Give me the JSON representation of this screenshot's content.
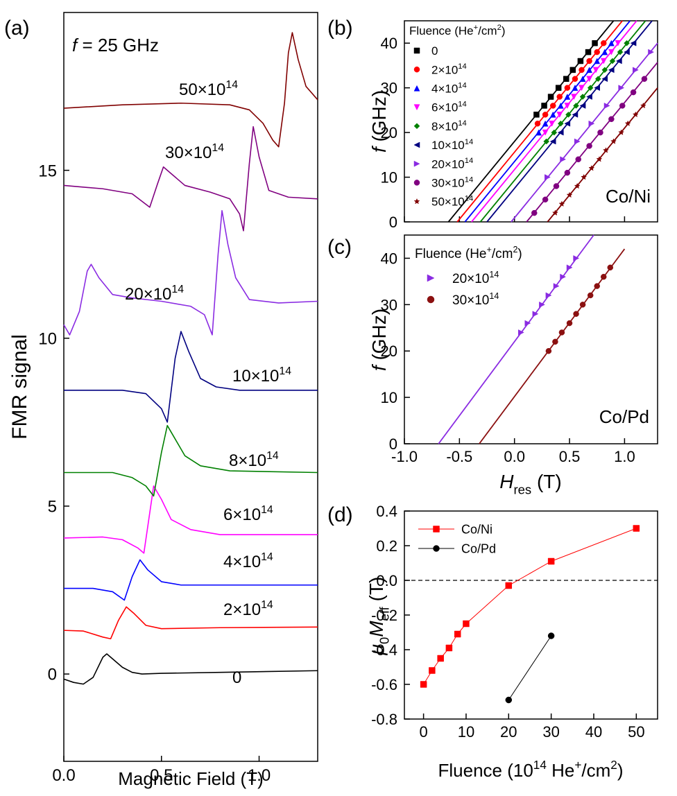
{
  "chart_data": [
    {
      "type": "line",
      "panel": "(a)",
      "ylabel": "FMR signal",
      "xlabel": "Magnetic Field (T)",
      "annotation": [
        "f",
        " = 25 GHz"
      ],
      "xlim": [
        0,
        1.3
      ],
      "ylim": [
        -2.6,
        19.7
      ],
      "xticks": [
        {
          "value": 0,
          "label": "0.0"
        },
        0.5,
        {
          "value": 1,
          "label": "1.0"
        }
      ],
      "yticks": [
        0,
        5,
        10,
        15
      ],
      "series": [
        {
          "name": [
            "0"
          ],
          "color": "#000000",
          "x": [
            0,
            0.05,
            0.1,
            0.15,
            0.2,
            0.22,
            0.25,
            0.3,
            0.35,
            0.4,
            0.5,
            0.8,
            1.3
          ],
          "values": [
            -0.15,
            -0.25,
            -0.3,
            -0.1,
            0.5,
            0.6,
            0.45,
            0.2,
            0.05,
            0.0,
            0.02,
            0.05,
            0.1
          ]
        },
        {
          "name": [
            "2×10",
            "14"
          ],
          "color": "#ff0000",
          "x": [
            0,
            0.1,
            0.2,
            0.24,
            0.28,
            0.32,
            0.36,
            0.42,
            0.5,
            0.8,
            1.3
          ],
          "values": [
            1.3,
            1.28,
            1.1,
            1.05,
            1.6,
            2.0,
            1.8,
            1.45,
            1.35,
            1.38,
            1.4
          ]
        },
        {
          "name": [
            "4×10",
            "14"
          ],
          "color": "#0000ff",
          "x": [
            0,
            0.15,
            0.25,
            0.31,
            0.35,
            0.39,
            0.43,
            0.5,
            0.6,
            0.9,
            1.3
          ],
          "values": [
            2.55,
            2.55,
            2.45,
            2.2,
            2.9,
            3.4,
            3.1,
            2.75,
            2.65,
            2.65,
            2.65
          ]
        },
        {
          "name": [
            "6×10",
            "14"
          ],
          "color": "#ff00ff",
          "x": [
            0,
            0.2,
            0.3,
            0.38,
            0.41,
            0.44,
            0.46,
            0.5,
            0.55,
            0.65,
            0.8,
            1.3
          ],
          "values": [
            4.05,
            4.08,
            4.0,
            3.75,
            3.6,
            4.8,
            5.6,
            5.2,
            4.6,
            4.3,
            4.15,
            4.15
          ]
        },
        {
          "name": [
            "8×10",
            "14"
          ],
          "color": "#008000",
          "x": [
            0,
            0.25,
            0.35,
            0.42,
            0.46,
            0.5,
            0.53,
            0.57,
            0.62,
            0.7,
            0.85,
            1.3
          ],
          "values": [
            6.0,
            6.0,
            5.85,
            5.6,
            5.3,
            6.6,
            7.4,
            7.0,
            6.5,
            6.2,
            6.05,
            6.0
          ]
        },
        {
          "name": [
            "10×10",
            "14"
          ],
          "color": "#000080",
          "x": [
            0,
            0.3,
            0.42,
            0.5,
            0.53,
            0.57,
            0.6,
            0.64,
            0.7,
            0.78,
            0.9,
            1.3
          ],
          "values": [
            8.45,
            8.45,
            8.35,
            7.9,
            7.5,
            9.4,
            10.2,
            9.6,
            8.8,
            8.55,
            8.45,
            8.45
          ]
        },
        {
          "name": [
            "20×10",
            "14"
          ],
          "color": "#8a2be2",
          "x": [
            0,
            0.03,
            0.08,
            0.12,
            0.14,
            0.18,
            0.25,
            0.35,
            0.5,
            0.65,
            0.72,
            0.76,
            0.79,
            0.81,
            0.84,
            0.88,
            0.95,
            1.1,
            1.3
          ],
          "values": [
            10.4,
            10.1,
            10.8,
            12.0,
            12.2,
            11.8,
            11.3,
            11.2,
            11.1,
            10.95,
            10.7,
            10.1,
            12.5,
            13.8,
            12.8,
            11.8,
            11.15,
            11.05,
            11.1
          ]
        },
        {
          "name": [
            "30×10",
            "14"
          ],
          "color": "#800080",
          "x": [
            0,
            0.2,
            0.35,
            0.44,
            0.48,
            0.51,
            0.55,
            0.62,
            0.75,
            0.85,
            0.9,
            0.92,
            0.95,
            0.97,
            1.0,
            1.05,
            1.15,
            1.3
          ],
          "values": [
            14.55,
            14.45,
            14.3,
            13.9,
            14.6,
            15.1,
            14.9,
            14.55,
            14.35,
            14.15,
            13.7,
            13.2,
            15.2,
            16.3,
            15.4,
            14.4,
            14.2,
            14.15
          ]
        },
        {
          "name": [
            "50×10",
            "14"
          ],
          "color": "#800000",
          "x": [
            0,
            0.3,
            0.6,
            0.85,
            0.95,
            1.02,
            1.07,
            1.1,
            1.13,
            1.15,
            1.17,
            1.2,
            1.24,
            1.3
          ],
          "values": [
            16.85,
            16.95,
            17.0,
            16.95,
            16.8,
            16.4,
            15.9,
            15.7,
            17.0,
            18.5,
            19.1,
            18.3,
            17.5,
            17.1
          ]
        }
      ]
    },
    {
      "type": "scatter",
      "panel": "(b)",
      "ylabel": [
        "f",
        " (GHz)"
      ],
      "annotation": "Co/Ni",
      "annotation_color": "#ff0000",
      "legend": "upper left",
      "legend_title": [
        "Fluence (He",
        "+",
        "/cm",
        "2",
        ")"
      ],
      "xlim": [
        -1,
        1.3
      ],
      "ylim": [
        0,
        45
      ],
      "xticks": [
        -1,
        -0.5,
        0,
        0.5,
        1
      ],
      "xtick_labels": false,
      "yticks": [
        0,
        10,
        20,
        30,
        40
      ],
      "series": [
        {
          "name": [
            "0"
          ],
          "color": "#000000",
          "marker": "square",
          "x": [
            0.2,
            0.27,
            0.33,
            0.4,
            0.47,
            0.53,
            0.6,
            0.67,
            0.73
          ],
          "values": [
            24,
            26,
            28,
            30,
            32,
            34,
            36,
            38,
            40
          ],
          "fit": {
            "x": [
              -0.6,
              0.9
            ],
            "values": [
              0,
              45
            ]
          }
        },
        {
          "name": [
            "2×10",
            "14"
          ],
          "color": "#ff0000",
          "marker": "circle",
          "x": [
            0.21,
            0.28,
            0.35,
            0.41,
            0.48,
            0.55,
            0.61,
            0.68,
            0.75,
            0.81
          ],
          "values": [
            22,
            24,
            26,
            28,
            30,
            32,
            34,
            36,
            38,
            40
          ],
          "fit": {
            "x": [
              -0.52,
              0.98
            ],
            "values": [
              0,
              45
            ]
          }
        },
        {
          "name": [
            "4×10",
            "14"
          ],
          "color": "#0000ff",
          "marker": "triangle-up",
          "x": [
            0.22,
            0.28,
            0.35,
            0.42,
            0.48,
            0.55,
            0.62,
            0.68,
            0.75,
            0.82,
            0.88
          ],
          "values": [
            20,
            22,
            24,
            26,
            28,
            30,
            32,
            34,
            36,
            38,
            40
          ],
          "fit": {
            "x": [
              -0.45,
              1.05
            ],
            "values": [
              0,
              45
            ]
          }
        },
        {
          "name": [
            "6×10",
            "14"
          ],
          "color": "#ff00ff",
          "marker": "triangle-down",
          "x": [
            0.28,
            0.34,
            0.41,
            0.48,
            0.54,
            0.61,
            0.68,
            0.74,
            0.81,
            0.88,
            0.94
          ],
          "values": [
            20,
            22,
            24,
            26,
            28,
            30,
            32,
            34,
            36,
            38,
            40
          ],
          "fit": {
            "x": [
              -0.39,
              1.11
            ],
            "values": [
              0,
              45
            ]
          }
        },
        {
          "name": [
            "8×10",
            "14"
          ],
          "color": "#008000",
          "marker": "diamond",
          "x": [
            0.29,
            0.36,
            0.42,
            0.49,
            0.56,
            0.62,
            0.69,
            0.76,
            0.82,
            0.89,
            0.96,
            1.02
          ],
          "values": [
            18,
            20,
            22,
            24,
            26,
            28,
            30,
            32,
            34,
            36,
            38,
            40
          ],
          "fit": {
            "x": [
              -0.31,
              1.19
            ],
            "values": [
              0,
              45
            ]
          }
        },
        {
          "name": [
            "10×10",
            "14"
          ],
          "color": "#000080",
          "marker": "triangle-left",
          "x": [
            0.35,
            0.42,
            0.48,
            0.55,
            0.62,
            0.68,
            0.75,
            0.82,
            0.88,
            0.95,
            1.02,
            1.08
          ],
          "values": [
            18,
            20,
            22,
            24,
            26,
            28,
            30,
            32,
            34,
            36,
            38,
            40
          ],
          "fit": {
            "x": [
              -0.25,
              1.25
            ],
            "values": [
              0,
              45
            ]
          }
        },
        {
          "name": [
            "20×10",
            "14"
          ],
          "color": "#8a2be2",
          "marker": "triangle-right",
          "x": [
            0.3,
            0.44,
            0.57,
            0.7,
            0.84,
            0.97,
            1.1,
            1.24
          ],
          "values": [
            10,
            14,
            18,
            22,
            26,
            30,
            34,
            38
          ],
          "fit": {
            "x": [
              -0.03,
              1.3
            ],
            "values": [
              0,
              40
            ]
          }
        },
        {
          "name": [
            "30×10",
            "14"
          ],
          "color": "#800080",
          "marker": "circle",
          "x": [
            0.18,
            0.28,
            0.38,
            0.48,
            0.58,
            0.68,
            0.78,
            0.88,
            0.98,
            1.08,
            1.18
          ],
          "values": [
            2,
            5,
            8,
            11,
            14,
            17,
            20,
            23,
            26,
            29,
            32
          ],
          "fit": {
            "x": [
              0.11,
              1.3
            ],
            "values": [
              0,
              35.7
            ]
          }
        },
        {
          "name": [
            "50×10",
            "14"
          ],
          "color": "#800000",
          "marker": "star",
          "x": [
            0.37,
            0.43,
            0.5,
            0.57,
            0.63,
            0.7,
            0.77,
            0.83,
            0.9,
            0.97,
            1.03,
            1.1,
            1.17
          ],
          "values": [
            2,
            4,
            6,
            8,
            10,
            12,
            14,
            16,
            18,
            20,
            22,
            24,
            26
          ],
          "fit": {
            "x": [
              0.3,
              1.3
            ],
            "values": [
              0,
              30
            ]
          }
        }
      ]
    },
    {
      "type": "scatter",
      "panel": "(c)",
      "ylabel": [
        "f",
        " (GHz)"
      ],
      "xlabel": [
        "H",
        "res",
        " (T)"
      ],
      "annotation": "Co/Pd",
      "annotation_color": "#000000",
      "legend": "upper left",
      "legend_title": [
        "Fluence (He",
        "+",
        "/cm",
        "2",
        ")"
      ],
      "xlim": [
        -1,
        1.3
      ],
      "ylim": [
        0,
        45
      ],
      "xticks": [
        {
          "value": -1,
          "label": "-1.0"
        },
        -0.5,
        {
          "value": 0,
          "label": "0.0"
        },
        0.5,
        {
          "value": 1,
          "label": "1.0"
        }
      ],
      "yticks": [
        0,
        10,
        20,
        30,
        40
      ],
      "series": [
        {
          "name": [
            "20×10",
            "14"
          ],
          "color": "#8a2be2",
          "marker": "triangle-right",
          "x": [
            0.06,
            0.12,
            0.19,
            0.25,
            0.31,
            0.38,
            0.44,
            0.5,
            0.56
          ],
          "values": [
            24,
            26,
            28,
            30,
            32,
            34,
            36,
            38,
            40
          ],
          "fit": {
            "x": [
              -0.69,
              0.72
            ],
            "values": [
              0,
              45
            ]
          }
        },
        {
          "name": [
            "30×10",
            "14"
          ],
          "color": "#8b1010",
          "marker": "circle",
          "x": [
            0.31,
            0.37,
            0.43,
            0.5,
            0.56,
            0.62,
            0.69,
            0.75,
            0.81,
            0.87
          ],
          "values": [
            20,
            22,
            24,
            26,
            28,
            30,
            32,
            34,
            36,
            38
          ],
          "fit": {
            "x": [
              -0.32,
              1.0
            ],
            "values": [
              0,
              42
            ]
          }
        }
      ]
    },
    {
      "type": "line",
      "panel": "(d)",
      "ylabel": [
        "μ",
        "0",
        "M",
        "eff",
        " (T)"
      ],
      "xlabel": [
        "Fluence (10",
        "14",
        " He",
        "+",
        "/cm",
        "2",
        ")"
      ],
      "legend": "upper left",
      "hline": 0,
      "xlim": [
        -4.5,
        55
      ],
      "ylim": [
        -0.8,
        0.4
      ],
      "xticks": [
        0,
        10,
        20,
        30,
        40,
        50
      ],
      "yticks": [
        -0.8,
        -0.6,
        -0.4,
        -0.2,
        {
          "value": 0,
          "label": "0.0"
        },
        0.2,
        0.4
      ],
      "series": [
        {
          "name": [
            "Co/Ni"
          ],
          "color": "#ff0000",
          "marker": "square",
          "x": [
            0,
            2,
            4,
            6,
            8,
            10,
            20,
            30,
            50
          ],
          "values": [
            -0.6,
            -0.52,
            -0.45,
            -0.39,
            -0.31,
            -0.25,
            -0.03,
            0.11,
            0.3
          ]
        },
        {
          "name": [
            "Co/Pd"
          ],
          "color": "#000000",
          "marker": "circle",
          "x": [
            20,
            30
          ],
          "values": [
            -0.69,
            -0.32
          ]
        }
      ]
    }
  ]
}
